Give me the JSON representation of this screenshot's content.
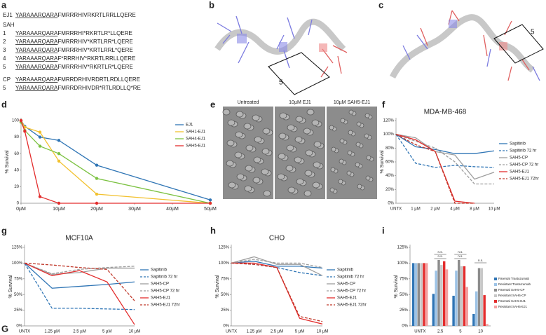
{
  "panel_labels": [
    "a",
    "b",
    "c",
    "d",
    "e",
    "f",
    "g",
    "h",
    "i",
    "G"
  ],
  "sequences": {
    "group_label": "SAH",
    "rows": [
      {
        "label": "EJ1",
        "tag": "YARAAARQARA",
        "seq": "FMRRRHIVRKRTLRRLLQERE"
      },
      {
        "label": "1",
        "tag": "YARAAARQARA",
        "seq": "FMRRRHI*RKRTLR*LLQERE"
      },
      {
        "label": "2",
        "tag": "YARAAARQARA",
        "seq": "FMRRRHIV*KRTLRR*LQERE"
      },
      {
        "label": "3",
        "tag": "YARAAARQARA",
        "seq": "FMRRRHIV*KRTLRRL*QERE"
      },
      {
        "label": "4",
        "tag": "YARAAARQARA",
        "seq": "F*RRRHIV*RKRTLRRLLQERE"
      },
      {
        "label": "5",
        "tag": "YARAAARQARA",
        "seq": "FMRRRHIV*RKRTLR*LQERE"
      },
      {
        "label": "CP",
        "tag": "YARAAARQARA",
        "seq": "FMRRDRHIVRDRTLRDLLQERE"
      },
      {
        "label": "5",
        "tag": "YARAAARQARA",
        "seq": "FMRRDRHIVDR*RTLRDLLQ*RE"
      }
    ]
  },
  "structure_labels": [
    "5",
    "5"
  ],
  "micrographs": [
    "Untreated",
    "10µM EJ1",
    "10µM SAH5-EJ1"
  ],
  "chart_data": [
    {
      "type": "line",
      "y_label": "% Survival",
      "markers": true,
      "x": [
        0,
        1,
        5,
        10,
        20,
        50
      ],
      "xlim": [
        0,
        50
      ],
      "xticks": [
        {
          "value": 0,
          "label": "0µM"
        },
        {
          "value": 10,
          "label": "10µM"
        },
        {
          "value": 20,
          "label": "20µM"
        },
        {
          "value": 30,
          "label": "30µM"
        },
        {
          "value": 40,
          "label": "40µM"
        },
        {
          "value": 50,
          "label": "50µM"
        }
      ],
      "ylim": [
        0,
        100
      ],
      "yticks": [
        0,
        20,
        40,
        60,
        80,
        100
      ],
      "series": [
        {
          "name": "EJ1",
          "color": "#2f75b5",
          "values": [
            100,
            93,
            80,
            76,
            46,
            4
          ]
        },
        {
          "name": "SAH1-EJ1",
          "color": "#f2c12e",
          "values": [
            100,
            92,
            86,
            51,
            11,
            0
          ]
        },
        {
          "name": "SAH4-EJ1",
          "color": "#7cc242",
          "values": [
            98,
            88,
            69,
            60,
            30,
            0
          ]
        },
        {
          "name": "SAH5-EJ1",
          "color": "#e32d2d",
          "values": [
            100,
            87,
            8,
            0,
            0,
            0
          ]
        }
      ]
    },
    {
      "type": "line",
      "title": "MDA-MB-468",
      "y_label": "% Survival",
      "categories": [
        "UNTX",
        "1 µM",
        "2 µM",
        "4 µM",
        "8 µM",
        "10 µM"
      ],
      "ylim": [
        0,
        120
      ],
      "yticks": [
        {
          "value": 0,
          "label": "0%"
        },
        {
          "value": 20,
          "label": "20%"
        },
        {
          "value": 40,
          "label": "40%"
        },
        {
          "value": 60,
          "label": "60%"
        },
        {
          "value": 80,
          "label": "80%"
        },
        {
          "value": 100,
          "label": "100%"
        },
        {
          "value": 120,
          "label": "120%"
        }
      ],
      "series": [
        {
          "name": "Sapitinib",
          "color": "#2f75b5",
          "dashed": false,
          "values": [
            100,
            82,
            78,
            72,
            72,
            76
          ]
        },
        {
          "name": "Sapitinib 72 hr",
          "color": "#2f75b5",
          "dashed": true,
          "values": [
            100,
            58,
            52,
            55,
            53,
            52
          ]
        },
        {
          "name": "SAH5-CP",
          "color": "#9e9e9e",
          "dashed": false,
          "values": [
            100,
            95,
            75,
            70,
            35,
            45
          ]
        },
        {
          "name": "SAH5-CP 72 hr",
          "color": "#9e9e9e",
          "dashed": true,
          "values": [
            100,
            90,
            80,
            60,
            28,
            28
          ]
        },
        {
          "name": "SAH5-EJ1",
          "color": "#e32d2d",
          "dashed": false,
          "values": [
            100,
            92,
            75,
            3,
            0,
            null
          ]
        },
        {
          "name": "SAH5-EJ1 72hr",
          "color": "#c0392b",
          "dashed": true,
          "values": [
            100,
            85,
            75,
            0,
            0,
            null
          ]
        }
      ]
    },
    {
      "type": "line",
      "title": "MCF10A",
      "y_label": "% Survival",
      "categories": [
        "UNTX",
        "1.25 µM",
        "2.5 µM",
        "5 µM",
        "10 µM"
      ],
      "ylim": [
        0,
        125
      ],
      "yticks": [
        {
          "value": 0,
          "label": "0%"
        },
        {
          "value": 25,
          "label": "25%"
        },
        {
          "value": 50,
          "label": "50%"
        },
        {
          "value": 75,
          "label": "75%"
        },
        {
          "value": 100,
          "label": "100%"
        },
        {
          "value": 125,
          "label": "125%"
        }
      ],
      "series": [
        {
          "name": "Sapitinib",
          "color": "#2f75b5",
          "dashed": false,
          "values": [
            100,
            60,
            63,
            66,
            70
          ]
        },
        {
          "name": "Sapitinib 72 hr",
          "color": "#2f75b5",
          "dashed": true,
          "values": [
            100,
            28,
            28,
            27,
            26
          ]
        },
        {
          "name": "SAH5-CP",
          "color": "#9e9e9e",
          "dashed": false,
          "values": [
            100,
            82,
            85,
            92,
            92
          ]
        },
        {
          "name": "SAH5-CP 72 hr",
          "color": "#9e9e9e",
          "dashed": true,
          "values": [
            100,
            83,
            90,
            93,
            95
          ]
        },
        {
          "name": "SAH5-EJ1",
          "color": "#e32d2d",
          "dashed": false,
          "values": [
            100,
            80,
            88,
            70,
            2
          ]
        },
        {
          "name": "SAH5-EJ1 72hr",
          "color": "#c0392b",
          "dashed": true,
          "values": [
            100,
            97,
            93,
            90,
            40
          ]
        }
      ]
    },
    {
      "type": "line",
      "title": "CHO",
      "y_label": "% Survival",
      "categories": [
        "UNTX",
        "1.25 µM",
        "2.5 µM",
        "5 µM",
        "10 µM"
      ],
      "ylim": [
        0,
        125
      ],
      "yticks": [
        {
          "value": 0,
          "label": "0%"
        },
        {
          "value": 25,
          "label": "25%"
        },
        {
          "value": 50,
          "label": "50%"
        },
        {
          "value": 75,
          "label": "75%"
        },
        {
          "value": 100,
          "label": "100%"
        },
        {
          "value": 125,
          "label": "125%"
        }
      ],
      "series": [
        {
          "name": "Sapitinib",
          "color": "#2f75b5",
          "dashed": false,
          "values": [
            100,
            103,
            95,
            95,
            92
          ]
        },
        {
          "name": "Sapitinib 72 hr",
          "color": "#2f75b5",
          "dashed": true,
          "values": [
            100,
            98,
            93,
            85,
            80
          ]
        },
        {
          "name": "SAH5-CP",
          "color": "#9e9e9e",
          "dashed": false,
          "values": [
            100,
            110,
            98,
            98,
            80
          ]
        },
        {
          "name": "SAH5-CP 72 hr",
          "color": "#9e9e9e",
          "dashed": true,
          "values": [
            100,
            106,
            100,
            100,
            93
          ]
        },
        {
          "name": "SAH5-EJ1",
          "color": "#e32d2d",
          "dashed": false,
          "values": [
            100,
            100,
            93,
            12,
            3
          ]
        },
        {
          "name": "SAH5-EJ1 72hr",
          "color": "#c0392b",
          "dashed": true,
          "values": [
            100,
            98,
            93,
            15,
            7
          ]
        }
      ]
    },
    {
      "type": "bar",
      "y_label": "% Survival",
      "categories": [
        "UNTX",
        "2.5",
        "5",
        "10"
      ],
      "ylim": [
        0,
        125
      ],
      "yticks": [
        {
          "value": 0,
          "label": "0%"
        },
        {
          "value": 25,
          "label": "25%"
        },
        {
          "value": 50,
          "label": "50%"
        },
        {
          "value": 75,
          "label": "75%"
        },
        {
          "value": 100,
          "label": "100%"
        },
        {
          "value": 125,
          "label": "125%"
        }
      ],
      "annotations": [
        "n.s.",
        "n.s.",
        "n.s.",
        "n.s.",
        "n.s."
      ],
      "series": [
        {
          "name": "Parental Trastuzumab",
          "color": "#2f75b5",
          "values": [
            100,
            51,
            48,
            19
          ]
        },
        {
          "name": "Resistant Trastuzumab",
          "color": "#9dc3e6",
          "values": [
            100,
            88,
            88,
            55
          ]
        },
        {
          "name": "Parental SAH5-CP",
          "color": "#8c8c8c",
          "values": [
            100,
            105,
            105,
            92
          ]
        },
        {
          "name": "Resistant SAH5-CP",
          "color": "#c8c8c8",
          "values": [
            100,
            97,
            95,
            92
          ]
        },
        {
          "name": "Parental SAH5-EJ1",
          "color": "#e32d2d",
          "values": [
            100,
            103,
            95,
            49
          ]
        },
        {
          "name": "Resistant SAH5-EJ1",
          "color": "#f4a0a0",
          "values": [
            100,
            90,
            62,
            3
          ]
        }
      ]
    }
  ]
}
